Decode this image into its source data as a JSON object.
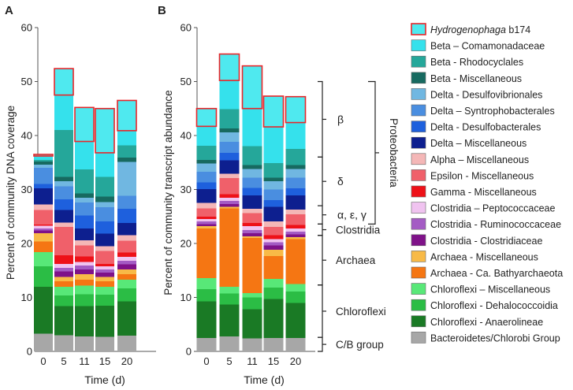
{
  "chart_data": [
    {
      "type": "bar",
      "stacked": true,
      "panel_label": "A",
      "title": "",
      "xlabel": "Time (d)",
      "ylabel": "Percent of community DNA coverage",
      "ylim": [
        0,
        60
      ],
      "yticks": [
        0,
        10,
        20,
        30,
        40,
        50,
        60
      ],
      "categories": [
        "0",
        "5",
        "11",
        "15",
        "20"
      ],
      "series": [
        {
          "name": "Bacteroidetes/Chlorobi Group",
          "values": [
            3.3,
            3.0,
            2.8,
            2.7,
            2.9
          ]
        },
        {
          "name": "Chloroflexi - Anaerolineae",
          "values": [
            8.7,
            5.4,
            5.6,
            5.8,
            6.4
          ]
        },
        {
          "name": "Chloroflexi - Dehalococcoidia",
          "values": [
            3.8,
            2.0,
            2.2,
            2.0,
            2.4
          ]
        },
        {
          "name": "Chloroflexi – Miscellaneous",
          "values": [
            2.6,
            1.6,
            1.6,
            1.5,
            1.6
          ]
        },
        {
          "name": "Archaea - Ca. Bathyarchaeota",
          "values": [
            2.0,
            1.0,
            1.1,
            1.0,
            1.0
          ]
        },
        {
          "name": "Archaea - Miscellaneous",
          "values": [
            1.5,
            0.8,
            1.0,
            0.8,
            0.9
          ]
        },
        {
          "name": "Clostridia - Clostridiaceae",
          "values": [
            0.5,
            1.0,
            0.9,
            0.8,
            0.9
          ]
        },
        {
          "name": "Clostridia - Ruminococcaceae",
          "values": [
            0.4,
            0.7,
            0.7,
            0.6,
            0.7
          ]
        },
        {
          "name": "Clostridia – Peptococcaceae",
          "values": [
            0.5,
            0.7,
            0.7,
            0.6,
            0.7
          ]
        },
        {
          "name": "Gamma - Miscellaneous",
          "values": [
            0.2,
            1.6,
            1.0,
            0.4,
            0.8
          ]
        },
        {
          "name": "Epsilon - Miscellaneous",
          "values": [
            2.7,
            5.3,
            2.0,
            2.4,
            2.2
          ]
        },
        {
          "name": "Alpha – Miscellaneous",
          "values": [
            1.0,
            0.8,
            1.0,
            0.9,
            1.0
          ]
        },
        {
          "name": "Delta – Miscellaneous",
          "values": [
            3.0,
            2.3,
            2.2,
            2.3,
            2.3
          ]
        },
        {
          "name": "Delta - Desulfobacterales",
          "values": [
            0.8,
            2.0,
            2.4,
            2.3,
            2.6
          ]
        },
        {
          "name": "Delta – Syntrophobacterales",
          "values": [
            3.0,
            2.4,
            2.4,
            2.6,
            2.4
          ]
        },
        {
          "name": "Delta - Desulfovibrionales",
          "values": [
            0.6,
            0.9,
            0.9,
            1.0,
            6.3
          ]
        },
        {
          "name": "Beta - Miscellaneous",
          "values": [
            0.6,
            0.8,
            0.8,
            1.0,
            0.8
          ]
        },
        {
          "name": "Beta - Rhodocyclales",
          "values": [
            0.3,
            8.7,
            4.4,
            3.6,
            2.3
          ]
        },
        {
          "name": "Beta – Comamonadaceae",
          "values": [
            0.7,
            6.5,
            5.2,
            4.5,
            2.7
          ]
        },
        {
          "name": "Hydrogenophaga b174",
          "values": [
            0.3,
            4.9,
            6.3,
            8.2,
            5.6
          ]
        }
      ]
    },
    {
      "type": "bar",
      "stacked": true,
      "panel_label": "B",
      "title": "",
      "xlabel": "Time (d)",
      "ylabel": "Percent of community transcript abundance",
      "ylim": [
        0,
        60
      ],
      "yticks": [
        0,
        10,
        20,
        30,
        40,
        50,
        60
      ],
      "categories": [
        "0",
        "5",
        "11",
        "15",
        "20"
      ],
      "series": [
        {
          "name": "Bacteroidetes/Chlorobi Group",
          "values": [
            2.5,
            2.8,
            2.4,
            2.5,
            2.5
          ]
        },
        {
          "name": "Chloroflexi - Anaerolineae",
          "values": [
            6.8,
            5.9,
            5.4,
            7.2,
            6.5
          ]
        },
        {
          "name": "Chloroflexi - Dehalococcoidia",
          "values": [
            2.2,
            2.0,
            2.2,
            2.1,
            2.1
          ]
        },
        {
          "name": "Chloroflexi – Miscellaneous",
          "values": [
            2.1,
            1.3,
            0.8,
            1.6,
            1.4
          ]
        },
        {
          "name": "Archaea - Ca. Bathyarchaeota",
          "values": [
            9.2,
            14.5,
            10.2,
            4.3,
            8.3
          ]
        },
        {
          "name": "Archaea - Miscellaneous",
          "values": [
            0.4,
            0.3,
            0.3,
            1.1,
            0.4
          ]
        },
        {
          "name": "Clostridia - Clostridiaceae",
          "values": [
            0.4,
            0.5,
            0.6,
            0.8,
            0.5
          ]
        },
        {
          "name": "Clostridia - Ruminococcaceae",
          "values": [
            0.5,
            0.6,
            0.6,
            0.6,
            0.5
          ]
        },
        {
          "name": "Clostridia – Peptococcaceae",
          "values": [
            0.4,
            0.6,
            0.7,
            0.6,
            0.6
          ]
        },
        {
          "name": "Gamma - Miscellaneous",
          "values": [
            0.5,
            0.6,
            0.6,
            0.7,
            0.6
          ]
        },
        {
          "name": "Epsilon - Miscellaneous",
          "values": [
            1.5,
            3.0,
            1.8,
            1.6,
            2.0
          ]
        },
        {
          "name": "Alpha – Miscellaneous",
          "values": [
            1.0,
            0.8,
            0.8,
            1.0,
            0.9
          ]
        },
        {
          "name": "Delta – Miscellaneous",
          "values": [
            2.6,
            2.5,
            2.5,
            2.7,
            2.6
          ]
        },
        {
          "name": "Delta - Desulfobacterales",
          "values": [
            1.2,
            1.4,
            1.4,
            1.2,
            1.3
          ]
        },
        {
          "name": "Delta – Syntrophobacterales",
          "values": [
            2.0,
            2.0,
            1.9,
            2.0,
            2.0
          ]
        },
        {
          "name": "Delta - Desulfovibrionales",
          "values": [
            1.5,
            1.8,
            1.6,
            1.5,
            1.6
          ]
        },
        {
          "name": "Beta - Miscellaneous",
          "values": [
            0.7,
            0.7,
            0.7,
            0.7,
            0.7
          ]
        },
        {
          "name": "Beta - Rhodocyclales",
          "values": [
            2.6,
            3.6,
            3.5,
            2.7,
            3.0
          ]
        },
        {
          "name": "Beta – Comamonadaceae",
          "values": [
            3.6,
            5.3,
            7.0,
            6.7,
            4.9
          ]
        },
        {
          "name": "Hydrogenophaga b174",
          "values": [
            3.3,
            4.9,
            7.9,
            5.7,
            4.8
          ]
        }
      ],
      "annotations": [
        {
          "label": "β",
          "from": 36.0,
          "to": 50.0
        },
        {
          "label": "δ",
          "from": 27.0,
          "to": 36.0
        },
        {
          "label": "α, ε, γ",
          "from": 23.6,
          "to": 27.0
        },
        {
          "label": "Proteobacteria",
          "from": 23.6,
          "to": 50.0,
          "outer": true
        },
        {
          "label": "Clostridia",
          "from": 21.5,
          "to": 23.6
        },
        {
          "label": "Archaea",
          "from": 12.3,
          "to": 21.5
        },
        {
          "label": "Chloroflexi",
          "from": 2.6,
          "to": 12.3
        },
        {
          "label": "C/B group",
          "from": 0.0,
          "to": 2.6
        }
      ]
    }
  ],
  "legend": {
    "placement": "right",
    "order_top_to_bottom": true,
    "entries": [
      {
        "prefix": "Hydrogenophaga",
        "suffix": " b174",
        "color": "#4fe9ef",
        "outline": "#e8262a"
      },
      {
        "prefix": "",
        "suffix": "Beta – Comamonadaceae",
        "color": "#35e1ec"
      },
      {
        "prefix": "",
        "suffix": "Beta - Rhodocyclales",
        "color": "#25a79a"
      },
      {
        "prefix": "",
        "suffix": "Beta - Miscellaneous",
        "color": "#176a60"
      },
      {
        "prefix": "",
        "suffix": "Delta - Desulfovibrionales",
        "color": "#70b7e1"
      },
      {
        "prefix": "",
        "suffix": "Delta – Syntrophobacterales",
        "color": "#4a8ee0"
      },
      {
        "prefix": "",
        "suffix": "Delta - Desulfobacterales",
        "color": "#1e60dd"
      },
      {
        "prefix": "",
        "suffix": "Delta – Miscellaneous",
        "color": "#0d1f8f"
      },
      {
        "prefix": "",
        "suffix": "Alpha – Miscellaneous",
        "color": "#f4b7b7"
      },
      {
        "prefix": "",
        "suffix": "Epsilon - Miscellaneous",
        "color": "#f0606a"
      },
      {
        "prefix": "",
        "suffix": "Gamma - Miscellaneous",
        "color": "#ee1118"
      },
      {
        "prefix": "",
        "suffix": "Clostridia – Peptococcaceae",
        "color": "#f0c3f0"
      },
      {
        "prefix": "",
        "suffix": "Clostridia - Ruminococcaceae",
        "color": "#a45bc4"
      },
      {
        "prefix": "",
        "suffix": "Clostridia - Clostridiaceae",
        "color": "#7f1289"
      },
      {
        "prefix": "",
        "suffix": "Archaea - Miscellaneous",
        "color": "#f8ba47"
      },
      {
        "prefix": "",
        "suffix": "Archaea - Ca. Bathyarchaeota",
        "color": "#f57613"
      },
      {
        "prefix": "",
        "suffix": "Chloroflexi – Miscellaneous",
        "color": "#58e878"
      },
      {
        "prefix": "",
        "suffix": "Chloroflexi - Dehalococcoidia",
        "color": "#2bbd45"
      },
      {
        "prefix": "",
        "suffix": "Chloroflexi - Anaerolineae",
        "color": "#1a7a25"
      },
      {
        "prefix": "",
        "suffix": "Bacteroidetes/Chlorobi Group",
        "color": "#a7a7a7"
      }
    ]
  },
  "colors": {
    "highlight_outline": "#e8262a",
    "axis": "#555555"
  }
}
